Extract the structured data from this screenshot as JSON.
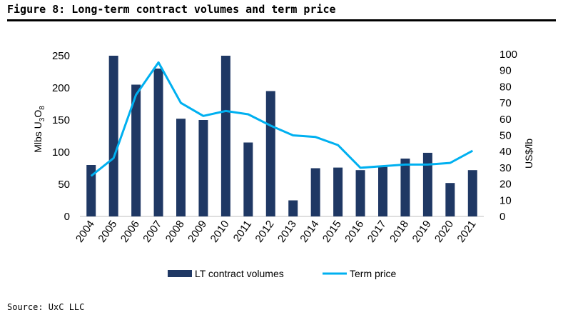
{
  "figure": {
    "title": "Figure 8: Long-term contract volumes and term price",
    "source": "Source: UxC LLC"
  },
  "colors": {
    "bar": "#1f3864",
    "line": "#00b0f0"
  },
  "chart_data": {
    "type": "bar",
    "title": "Figure 8: Long-term contract volumes and term price",
    "categories": [
      "2004",
      "2005",
      "2006",
      "2007",
      "2008",
      "2009",
      "2010",
      "2011",
      "2012",
      "2013",
      "2014",
      "2015",
      "2016",
      "2017",
      "2018",
      "2019",
      "2020",
      "2021"
    ],
    "series": [
      {
        "name": "LT contract volumes",
        "type": "bar",
        "axis": "left",
        "values": [
          80,
          250,
          205,
          230,
          152,
          150,
          250,
          115,
          195,
          25,
          75,
          76,
          72,
          77,
          90,
          99,
          52,
          72
        ]
      },
      {
        "name": "Term price",
        "type": "line",
        "axis": "right",
        "values": [
          25,
          36,
          75,
          95,
          70,
          62,
          65,
          63,
          56,
          50,
          49,
          44,
          30,
          31,
          32,
          32,
          33,
          40.5
        ]
      }
    ],
    "y_left": {
      "label_parts": [
        "Mlbs U",
        "3",
        "O",
        "8"
      ],
      "min": 0,
      "max": 250,
      "ticks": [
        0,
        50,
        100,
        150,
        200,
        250
      ]
    },
    "y_right": {
      "label": "US$/lb",
      "min": 0,
      "max": 100,
      "ticks": [
        0,
        10,
        20,
        30,
        40,
        50,
        60,
        70,
        80,
        90,
        100
      ]
    },
    "grid": false,
    "legend": {
      "position": "bottom",
      "labels": [
        "LT contract volumes",
        "Term price"
      ]
    }
  }
}
